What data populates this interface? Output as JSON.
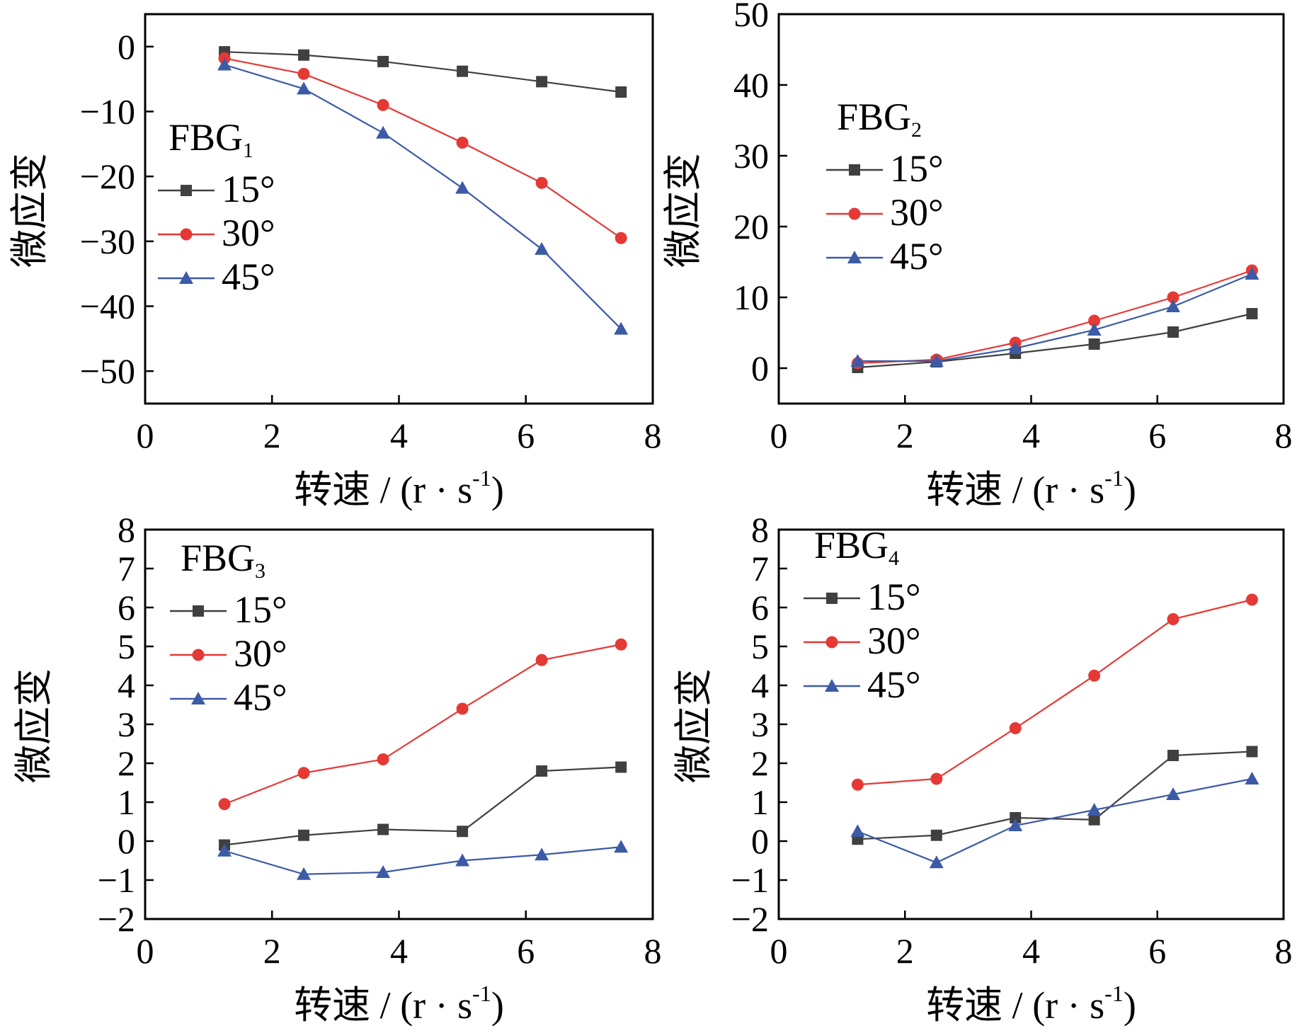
{
  "colors": {
    "15°": "#404040",
    "30°": "#e53935",
    "45°": "#3c5aa6"
  },
  "chart_data": [
    {
      "type": "line",
      "title": "",
      "legend_title": "FBG",
      "legend_title_sub": "1",
      "legend_position": "left",
      "xlabel": "转速 / (r · s",
      "xlabel_sup": "-1",
      "xlabel_end": ")",
      "ylabel": "微应变",
      "xlim": [
        0,
        8
      ],
      "ylim": [
        -55,
        5
      ],
      "xticks": [
        0,
        2,
        4,
        6,
        8
      ],
      "yticks": [
        0,
        -10,
        -20,
        -30,
        -40,
        -50
      ],
      "ytick_labels": [
        "0",
        "−10",
        "−20",
        "−30",
        "−40",
        "−50"
      ],
      "grid": false,
      "x": [
        1.25,
        2.5,
        3.75,
        5.0,
        6.25,
        7.5
      ],
      "series": [
        {
          "name": "15°",
          "marker": "square",
          "values": [
            -0.8,
            -1.3,
            -2.3,
            -3.8,
            -5.4,
            -7.0
          ]
        },
        {
          "name": "30°",
          "marker": "circle",
          "values": [
            -1.8,
            -4.2,
            -9.0,
            -14.8,
            -21.0,
            -29.5
          ]
        },
        {
          "name": "45°",
          "marker": "triangle",
          "values": [
            -2.8,
            -6.5,
            -13.3,
            -21.8,
            -31.2,
            -43.5
          ]
        }
      ]
    },
    {
      "type": "line",
      "title": "",
      "legend_title": "FBG",
      "legend_title_sub": "2",
      "legend_position": "left",
      "xlabel": "转速 / (r · s",
      "xlabel_sup": "-1",
      "xlabel_end": ")",
      "ylabel": "微应变",
      "xlim": [
        0,
        8
      ],
      "ylim": [
        -5,
        50
      ],
      "xticks": [
        0,
        2,
        4,
        6,
        8
      ],
      "yticks": [
        0,
        10,
        20,
        30,
        40,
        50
      ],
      "ytick_labels": [
        "0",
        "10",
        "20",
        "30",
        "40",
        "50"
      ],
      "grid": false,
      "x": [
        1.25,
        2.5,
        3.75,
        5.0,
        6.25,
        7.5
      ],
      "series": [
        {
          "name": "15°",
          "marker": "square",
          "values": [
            0.1,
            0.9,
            2.1,
            3.4,
            5.1,
            7.7
          ]
        },
        {
          "name": "30°",
          "marker": "circle",
          "values": [
            0.7,
            1.2,
            3.6,
            6.7,
            10.0,
            13.8
          ]
        },
        {
          "name": "45°",
          "marker": "triangle",
          "values": [
            1.0,
            1.0,
            2.8,
            5.4,
            8.7,
            13.3
          ]
        }
      ]
    },
    {
      "type": "line",
      "title": "",
      "legend_title": "FBG",
      "legend_title_sub": "3",
      "legend_position": "top-left",
      "xlabel": "转速 / (r · s",
      "xlabel_sup": "-1",
      "xlabel_end": ")",
      "ylabel": "微应变",
      "xlim": [
        0,
        8
      ],
      "ylim": [
        -2,
        8
      ],
      "xticks": [
        0,
        2,
        4,
        6,
        8
      ],
      "yticks": [
        -2,
        -1,
        0,
        1,
        2,
        3,
        4,
        5,
        6,
        7,
        8
      ],
      "ytick_labels": [
        "−2",
        "−1",
        "0",
        "1",
        "2",
        "3",
        "4",
        "5",
        "6",
        "7",
        "8"
      ],
      "grid": false,
      "x": [
        1.25,
        2.5,
        3.75,
        5.0,
        6.25,
        7.5
      ],
      "series": [
        {
          "name": "15°",
          "marker": "square",
          "values": [
            -0.1,
            0.15,
            0.3,
            0.25,
            1.8,
            1.9
          ]
        },
        {
          "name": "30°",
          "marker": "circle",
          "values": [
            0.95,
            1.75,
            2.1,
            3.4,
            4.65,
            5.05
          ]
        },
        {
          "name": "45°",
          "marker": "triangle",
          "values": [
            -0.25,
            -0.85,
            -0.8,
            -0.5,
            -0.35,
            -0.15
          ]
        }
      ]
    },
    {
      "type": "line",
      "title": "",
      "legend_title": "FBG",
      "legend_title_sub": "4",
      "legend_position": "top-left",
      "xlabel": "转速 / (r · s",
      "xlabel_sup": "-1",
      "xlabel_end": ")",
      "ylabel": "微应变",
      "xlim": [
        0,
        8
      ],
      "ylim": [
        -2,
        8
      ],
      "xticks": [
        0,
        2,
        4,
        6,
        8
      ],
      "yticks": [
        -2,
        -1,
        0,
        1,
        2,
        3,
        4,
        5,
        6,
        7,
        8
      ],
      "ytick_labels": [
        "−2",
        "−1",
        "0",
        "1",
        "2",
        "3",
        "4",
        "5",
        "6",
        "7",
        "8"
      ],
      "grid": false,
      "x": [
        1.25,
        2.5,
        3.75,
        5.0,
        6.25,
        7.5
      ],
      "series": [
        {
          "name": "15°",
          "marker": "square",
          "values": [
            0.05,
            0.15,
            0.6,
            0.55,
            2.2,
            2.3
          ]
        },
        {
          "name": "30°",
          "marker": "circle",
          "values": [
            1.45,
            1.6,
            2.9,
            4.25,
            5.7,
            6.2
          ]
        },
        {
          "name": "45°",
          "marker": "triangle",
          "values": [
            0.25,
            -0.55,
            0.4,
            0.8,
            1.2,
            1.6
          ]
        }
      ]
    }
  ]
}
